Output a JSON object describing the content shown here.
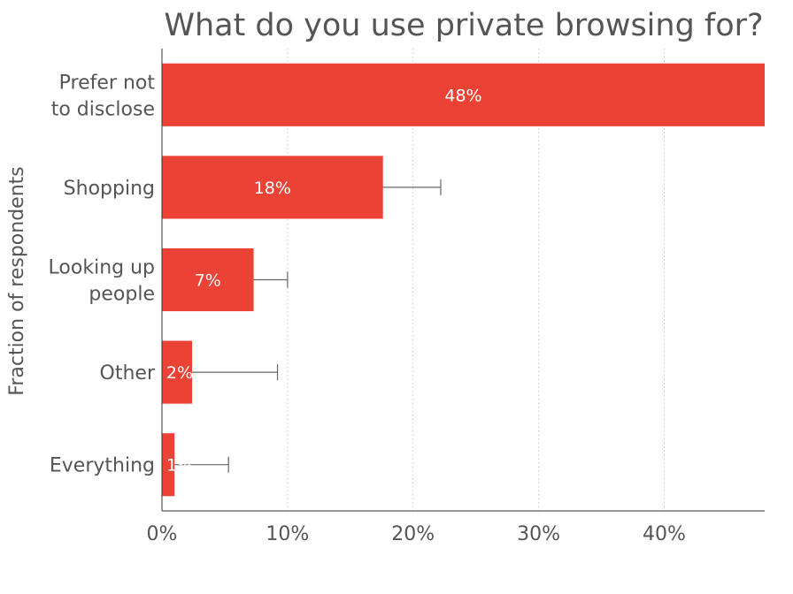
{
  "chart_data": {
    "type": "bar",
    "orientation": "horizontal",
    "title": "What do you use private browsing for?",
    "ylabel": "Fraction of respondents",
    "xlabel": "",
    "categories": [
      [
        "Prefer not",
        "to disclose"
      ],
      [
        "Shopping"
      ],
      [
        "Looking up",
        "people"
      ],
      [
        "Other"
      ],
      [
        "Everything"
      ]
    ],
    "values": [
      48,
      17.6,
      7.3,
      2.4,
      1.0
    ],
    "value_labels": [
      "48%",
      "18%",
      "7%",
      "2%",
      "1%"
    ],
    "error_upper": [
      null,
      22.2,
      10.0,
      9.2,
      5.3
    ],
    "xlim": [
      0,
      48
    ],
    "xticks": [
      0,
      10,
      20,
      30,
      40
    ],
    "xtick_labels": [
      "0%",
      "10%",
      "20%",
      "30%",
      "40%"
    ],
    "grid": "vertical-dotted",
    "bar_color": "#ea4335"
  }
}
